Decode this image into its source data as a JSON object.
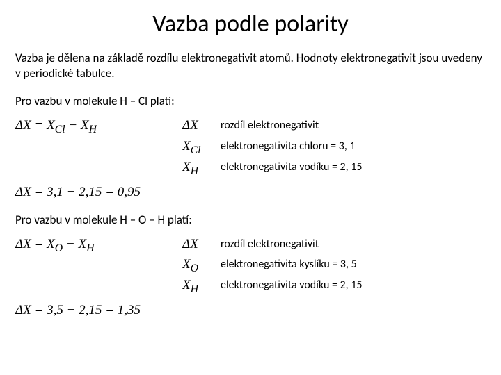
{
  "title": "Vazba podle polarity",
  "intro": "Vazba je dělena na základě rozdílu elektronegativit atomů. Hodnoty elektronegativit jsou uvedeny v periodické tabulce.",
  "section1": {
    "label": "Pro vazbu v molekule H – Cl platí:",
    "formula_html": "Δ<i>X</i> = <i>X</i><sub>Cl</sub> − <i>X</i><sub>H</sub>",
    "rows": [
      {
        "sym_html": "Δ<i>X</i>",
        "desc": "rozdíl elektronegativit"
      },
      {
        "sym_html": "<i>X</i><sub>Cl</sub>",
        "desc": "elektronegativita chloru = 3, 1"
      },
      {
        "sym_html": "<i>X</i><sub>H</sub>",
        "desc": "elektronegativita vodíku = 2, 15"
      }
    ],
    "calc_html": "Δ<i>X</i> = 3,1 − 2,15 = 0,95"
  },
  "section2": {
    "label": "Pro vazbu v molekule H – O – H platí:",
    "formula_html": "Δ<i>X</i> = <i>X</i><sub>O</sub> − <i>X</i><sub>H</sub>",
    "rows": [
      {
        "sym_html": "Δ<i>X</i>",
        "desc": "rozdíl elektronegativit"
      },
      {
        "sym_html": "<i>X</i><sub>O</sub>",
        "desc": "elektronegativita kyslíku = 3, 5"
      },
      {
        "sym_html": "<i>X</i><sub>H</sub>",
        "desc": "elektronegativita vodíku = 2, 15"
      }
    ],
    "calc_html": "Δ<i>X</i> = 3,5 − 2,15 = 1,35"
  },
  "colors": {
    "background": "#ffffff",
    "text": "#000000"
  },
  "fonts": {
    "body": "Calibri",
    "math": "Times New Roman"
  }
}
